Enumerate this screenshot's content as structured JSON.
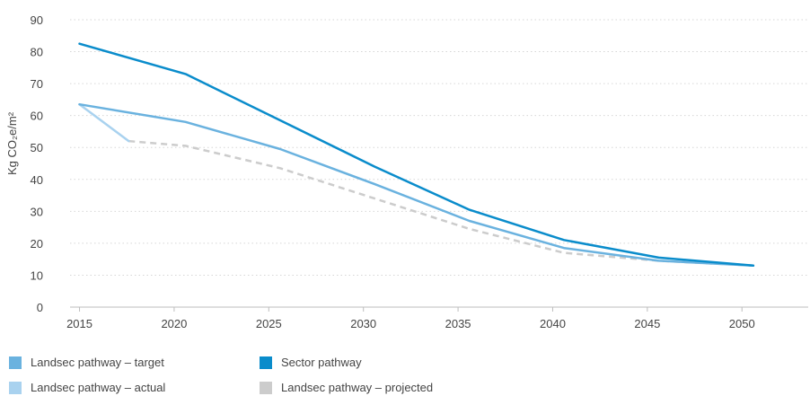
{
  "chart_data": {
    "type": "line",
    "ylabel": "Kg CO₂e/m²",
    "ylim": [
      0,
      90
    ],
    "y_ticks": [
      "0",
      "10",
      "20",
      "30",
      "40",
      "50",
      "60",
      "70",
      "80",
      "90"
    ],
    "xlim": [
      2014.5,
      2053.5
    ],
    "x_ticks": [
      "2015",
      "2020",
      "2025",
      "2030",
      "2035",
      "2040",
      "2045",
      "2050"
    ],
    "grid": "horizontal-dotted",
    "legend_position": "bottom",
    "series": [
      {
        "name": "Landsec pathway – target",
        "color": "#6ab2df",
        "style": "solid",
        "x": [
          2015,
          2020.6,
          2025.6,
          2030.6,
          2035.6,
          2040.6,
          2045.6,
          2050.6
        ],
        "values": [
          63.5,
          58,
          49.5,
          38.5,
          27,
          18.5,
          14.5,
          13
        ]
      },
      {
        "name": "Landsec pathway – actual",
        "color": "#a9d2ef",
        "style": "solid",
        "x": [
          2015,
          2017.6
        ],
        "values": [
          63.5,
          52
        ]
      },
      {
        "name": "Sector pathway",
        "color": "#0a8ccb",
        "style": "solid",
        "x": [
          2015,
          2020.6,
          2025.6,
          2030.6,
          2035.6,
          2040.6,
          2045.6,
          2050.6
        ],
        "values": [
          82.5,
          73,
          58.5,
          44,
          30.5,
          21,
          15.5,
          13
        ]
      },
      {
        "name": "Landsec pathway – projected",
        "color": "#cccccc",
        "style": "dashed",
        "x": [
          2017.6,
          2020.6,
          2025.6,
          2030.6,
          2035.6,
          2040.6,
          2045.6,
          2050.6
        ],
        "values": [
          52,
          50.5,
          43.5,
          34,
          24.5,
          17,
          14.5,
          13
        ]
      }
    ]
  },
  "legend": {
    "items": [
      {
        "label": "Landsec pathway – target",
        "color": "#6ab2df"
      },
      {
        "label": "Sector pathway",
        "color": "#0a8ccb"
      },
      {
        "label": "Landsec pathway – actual",
        "color": "#a9d2ef"
      },
      {
        "label": "Landsec pathway – projected",
        "color": "#cccccc"
      }
    ]
  }
}
